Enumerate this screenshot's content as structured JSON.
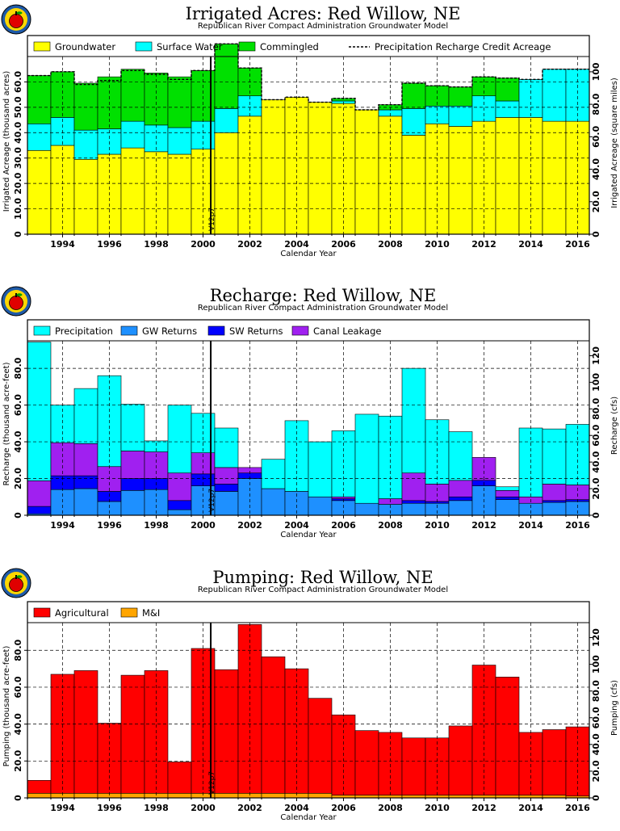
{
  "colors": {
    "groundwater": "#ffff00",
    "surface_water": "#00ffff",
    "commingled": "#00e000",
    "precipitation": "#00ffff",
    "gw_returns": "#1e90ff",
    "sw_returns": "#0000ff",
    "canal_leakage": "#a020f0",
    "agricultural": "#ff0000",
    "mi": "#ffa500"
  },
  "logo_icon": "apple-logo-icon",
  "chart_data": [
    {
      "type": "bar",
      "stacked": true,
      "title": "Irrigated Acres: Red Willow, NE",
      "subtitle": "Republican River Compact Administration Groundwater Model",
      "xlabel": "Calendar Year",
      "ylabel": "Irrigated Acreage (thousand acres)",
      "ylabel_right": "Irrigated Acreage (square miles)",
      "ylim": [
        0,
        70
      ],
      "yticks": [
        "0",
        "10.0",
        "20.0",
        "30.0",
        "40.0",
        "50.0",
        "60.0"
      ],
      "ylim_right": [
        0,
        109.4
      ],
      "yticks_right": [
        "0",
        "20.0",
        "40.0",
        "60.0",
        "80.0",
        "100"
      ],
      "x_range": [
        1993,
        2017
      ],
      "xticks": [
        "1994",
        "1996",
        "1998",
        "2000",
        "2002",
        "2004",
        "2006",
        "2008",
        "2010",
        "2012",
        "2014",
        "2016"
      ],
      "marker_year": 2000.83,
      "marker_label": "V12p7",
      "grid": true,
      "legend_position": "top",
      "categories": [
        1993,
        1994,
        1995,
        1996,
        1997,
        1998,
        1999,
        2000,
        2001,
        2002,
        2003,
        2004,
        2005,
        2006,
        2007,
        2008,
        2009,
        2010,
        2011,
        2012,
        2013,
        2014,
        2015,
        2016
      ],
      "series": [
        {
          "name": "Groundwater",
          "color_key": "groundwater",
          "values": [
            33,
            35,
            29.5,
            31.5,
            34,
            32.5,
            31.5,
            33.5,
            40,
            46.5,
            53,
            54,
            52,
            51.5,
            49,
            46.5,
            39,
            43.5,
            42.5,
            44.5,
            46,
            46,
            44.5,
            44.5
          ]
        },
        {
          "name": "Surface Water",
          "color_key": "surface_water",
          "values": [
            10.5,
            11,
            11.5,
            10,
            10.5,
            10.5,
            10.5,
            11,
            9.5,
            8,
            0,
            0,
            0,
            1,
            0,
            2.5,
            10.5,
            7,
            8,
            10,
            6.5,
            15,
            20.5,
            20.5
          ]
        },
        {
          "name": "Commingled",
          "color_key": "commingled",
          "values": [
            19,
            18,
            18.5,
            20.5,
            20.5,
            20.5,
            20,
            20,
            25.5,
            11,
            0,
            0,
            0,
            1,
            0,
            2,
            10,
            8,
            7.5,
            7.5,
            9,
            0,
            0,
            0
          ]
        }
      ],
      "precip_credit_line": {
        "name": "Precipitation Recharge Credit Acreage",
        "values": [
          62.5,
          64,
          59,
          60.5,
          64.5,
          63,
          61,
          64.5,
          75,
          65.5,
          53,
          54,
          52,
          53.5,
          49,
          51,
          59.5,
          58.5,
          58,
          62,
          61.5,
          61,
          65,
          65
        ]
      }
    },
    {
      "type": "bar",
      "stacked": true,
      "title": "Recharge: Red Willow, NE",
      "subtitle": "Republican River Compact Administration Groundwater Model",
      "xlabel": "Calendar Year",
      "ylabel": "Recharge (thousand acre-feet)",
      "ylabel_right": "Recharge (cfs)",
      "ylim": [
        0,
        95
      ],
      "yticks": [
        "0",
        "20.0",
        "40.0",
        "60.0",
        "80.0"
      ],
      "ylim_right": [
        0,
        131.2
      ],
      "yticks_right": [
        "0",
        "20.0",
        "40.0",
        "60.0",
        "80.0",
        "100",
        "120"
      ],
      "x_range": [
        1993,
        2017
      ],
      "xticks": [
        "1994",
        "1996",
        "1998",
        "2000",
        "2002",
        "2004",
        "2006",
        "2008",
        "2010",
        "2012",
        "2014",
        "2016"
      ],
      "marker_year": 2000.83,
      "marker_label": "V12p7",
      "grid": true,
      "legend_position": "top",
      "categories": [
        1993,
        1994,
        1995,
        1996,
        1997,
        1998,
        1999,
        2000,
        2001,
        2002,
        2003,
        2004,
        2005,
        2006,
        2007,
        2008,
        2009,
        2010,
        2011,
        2012,
        2013,
        2014,
        2015,
        2016
      ],
      "series": [
        {
          "name": "GW Returns",
          "color_key": "gw_returns",
          "values": [
            0.8,
            14,
            14.5,
            7.5,
            13.5,
            14,
            3,
            16,
            13,
            20,
            14.5,
            13,
            10,
            8,
            6.5,
            6,
            6.5,
            6.5,
            8,
            16,
            8.5,
            6.5,
            7,
            7.5
          ]
        },
        {
          "name": "SW Returns",
          "color_key": "sw_returns",
          "values": [
            4,
            7.5,
            7,
            5.5,
            6.5,
            6,
            5,
            6.5,
            4,
            3,
            0,
            0,
            0,
            1,
            0,
            0,
            1.5,
            1,
            2,
            3,
            1.5,
            0,
            1,
            1
          ]
        },
        {
          "name": "Canal Leakage",
          "color_key": "canal_leakage",
          "values": [
            14,
            18,
            17.5,
            13.5,
            15,
            14.5,
            15,
            11.5,
            9,
            3,
            0,
            0,
            0,
            1,
            0,
            3,
            15,
            9.5,
            9,
            12.5,
            3.5,
            3.5,
            9,
            8
          ]
        },
        {
          "name": "Precipitation",
          "color_key": "precipitation",
          "values": [
            75.5,
            20.5,
            30,
            49.5,
            25.5,
            6,
            37,
            21.5,
            21.5,
            0,
            16,
            38.5,
            30,
            36,
            48.5,
            45,
            57,
            35,
            26.5,
            0,
            2,
            37.5,
            30,
            33
          ]
        }
      ]
    },
    {
      "type": "bar",
      "stacked": true,
      "title": "Pumping: Red Willow, NE",
      "subtitle": "Republican River Compact Administration Groundwater Model",
      "xlabel": "Calendar Year",
      "ylabel": "Pumping (thousand acre-feet)",
      "ylabel_right": "Pumping (cfs)",
      "ylim": [
        0,
        95
      ],
      "yticks": [
        "0",
        "20.0",
        "40.0",
        "60.0",
        "80.0"
      ],
      "ylim_right": [
        0,
        131.2
      ],
      "yticks_right": [
        "0",
        "20.0",
        "40.0",
        "60.0",
        "80.0",
        "100",
        "120"
      ],
      "x_range": [
        1993,
        2017
      ],
      "xticks": [
        "1994",
        "1996",
        "1998",
        "2000",
        "2002",
        "2004",
        "2006",
        "2008",
        "2010",
        "2012",
        "2014",
        "2016"
      ],
      "marker_year": 2000.83,
      "marker_label": "V12p7",
      "grid": true,
      "legend_position": "top",
      "categories": [
        1993,
        1994,
        1995,
        1996,
        1997,
        1998,
        1999,
        2000,
        2001,
        2002,
        2003,
        2004,
        2005,
        2006,
        2007,
        2008,
        2009,
        2010,
        2011,
        2012,
        2013,
        2014,
        2015,
        2016
      ],
      "series": [
        {
          "name": "M&I",
          "color_key": "mi",
          "values": [
            2.5,
            2.5,
            2.5,
            2.5,
            2.5,
            2.5,
            2.5,
            2.5,
            2.5,
            2.5,
            2.5,
            2.5,
            2.5,
            1.5,
            1.5,
            1.5,
            1.5,
            1.5,
            1.5,
            1.5,
            1.5,
            1.5,
            1.5,
            1
          ]
        },
        {
          "name": "Agricultural",
          "color_key": "agricultural",
          "values": [
            7,
            64.5,
            66.5,
            38,
            64,
            66.5,
            17,
            78.5,
            67,
            91.5,
            74,
            67.5,
            51.5,
            43.5,
            35,
            34,
            31,
            31,
            37.5,
            70.5,
            64,
            34,
            35.5,
            37.5
          ]
        }
      ]
    }
  ]
}
